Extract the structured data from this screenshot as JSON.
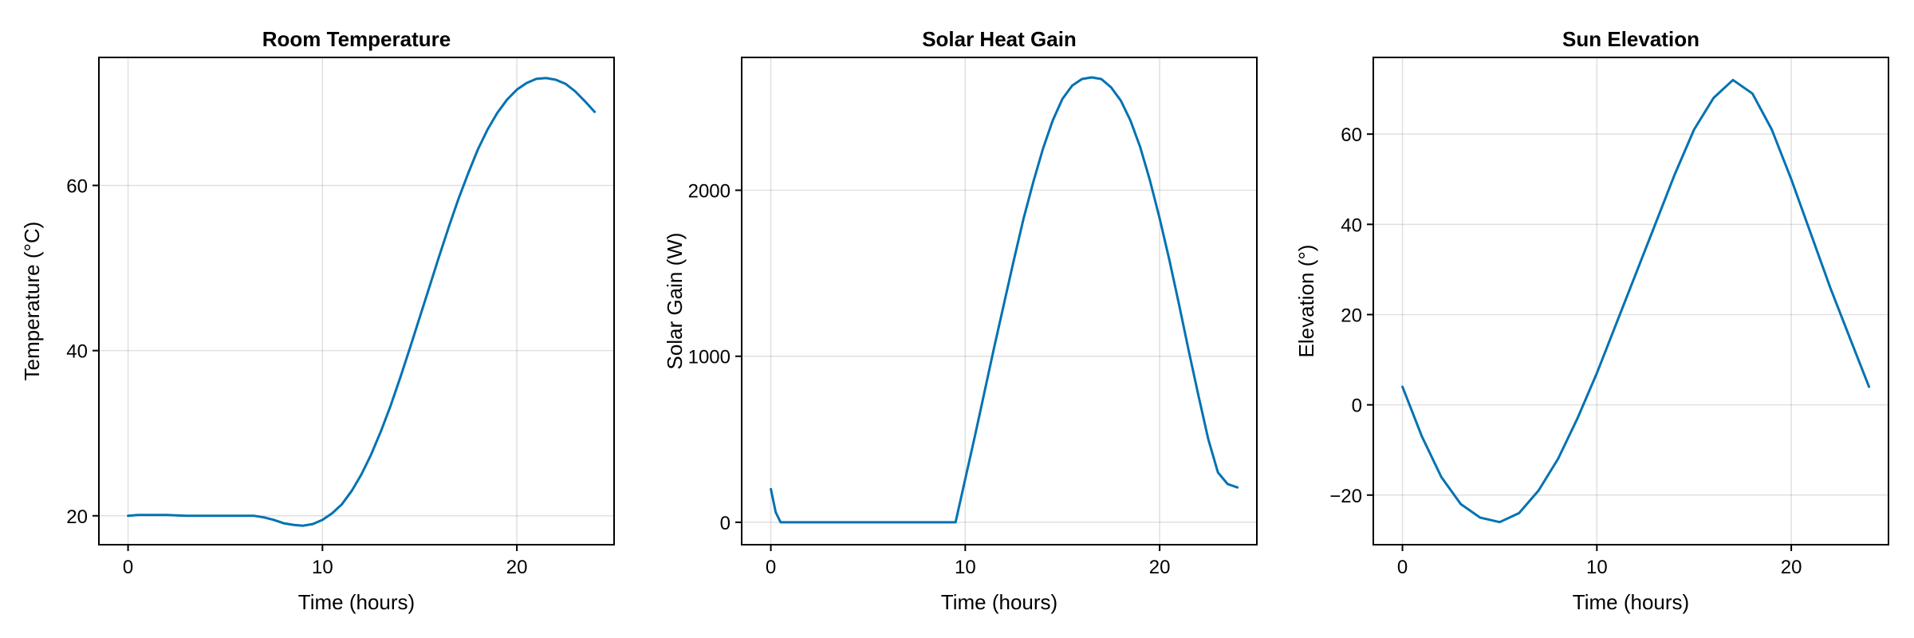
{
  "chart_data": [
    {
      "type": "line",
      "title": "Room Temperature",
      "xlabel": "Time (hours)",
      "ylabel": "Temperature (°C)",
      "xlim": [
        -1.5,
        25
      ],
      "ylim": [
        16.5,
        75.5
      ],
      "xticks": [
        0,
        10,
        20
      ],
      "yticks": [
        20,
        40,
        60
      ],
      "grid": true,
      "color": "#0072b2",
      "x": [
        0,
        0.5,
        1,
        2,
        3,
        4,
        5,
        6,
        6.5,
        7,
        7.5,
        8,
        8.5,
        9,
        9.5,
        10,
        10.5,
        11,
        11.5,
        12,
        12.5,
        13,
        13.5,
        14,
        14.5,
        15,
        15.5,
        16,
        16.5,
        17,
        17.5,
        18,
        18.5,
        19,
        19.5,
        20,
        20.5,
        21,
        21.5,
        22,
        22.5,
        23,
        23.5,
        24
      ],
      "y": [
        20.0,
        20.1,
        20.1,
        20.1,
        20.0,
        20.0,
        20.0,
        20.0,
        20.0,
        19.8,
        19.5,
        19.1,
        18.9,
        18.8,
        19.0,
        19.5,
        20.3,
        21.4,
        23.0,
        25.0,
        27.4,
        30.2,
        33.3,
        36.7,
        40.3,
        44.0,
        47.7,
        51.4,
        55.0,
        58.4,
        61.5,
        64.4,
        66.8,
        68.8,
        70.4,
        71.6,
        72.4,
        72.9,
        73.0,
        72.8,
        72.3,
        71.4,
        70.2,
        68.9
      ]
    },
    {
      "type": "line",
      "title": "Solar Heat Gain",
      "xlabel": "Time (hours)",
      "ylabel": "Solar Gain (W)",
      "xlim": [
        -1.5,
        25
      ],
      "ylim": [
        -135,
        2800
      ],
      "xticks": [
        0,
        10,
        20
      ],
      "yticks": [
        0,
        1000,
        2000
      ],
      "grid": true,
      "color": "#0072b2",
      "x": [
        0,
        0.25,
        0.5,
        1,
        2,
        3,
        4,
        5,
        6,
        7,
        8,
        9,
        9.5,
        10,
        10.5,
        11,
        11.5,
        12,
        12.5,
        13,
        13.5,
        14,
        14.5,
        15,
        15.5,
        16,
        16.5,
        17,
        17.5,
        18,
        18.5,
        19,
        19.5,
        20,
        20.5,
        21,
        21.5,
        22,
        22.5,
        23,
        23.5,
        24
      ],
      "y": [
        200,
        60,
        0,
        0,
        0,
        0,
        0,
        0,
        0,
        0,
        0,
        0,
        0,
        260,
        520,
        790,
        1060,
        1320,
        1580,
        1830,
        2050,
        2250,
        2420,
        2550,
        2630,
        2670,
        2680,
        2670,
        2620,
        2540,
        2420,
        2260,
        2060,
        1830,
        1580,
        1310,
        1030,
        760,
        500,
        300,
        230,
        210
      ]
    },
    {
      "type": "line",
      "title": "Sun Elevation",
      "xlabel": "Time (hours)",
      "ylabel": "Elevation (°)",
      "xlim": [
        -1.5,
        25
      ],
      "ylim": [
        -31,
        77
      ],
      "xticks": [
        0,
        10,
        20
      ],
      "yticks": [
        -20,
        0,
        20,
        40,
        60
      ],
      "grid": true,
      "color": "#0072b2",
      "x": [
        0,
        1,
        2,
        3,
        4,
        5,
        6,
        7,
        8,
        9,
        10,
        11,
        12,
        13,
        14,
        15,
        16,
        17,
        18,
        19,
        20,
        21,
        22,
        23,
        24
      ],
      "y": [
        4,
        -7,
        -16,
        -22,
        -25,
        -26,
        -24,
        -19,
        -12,
        -3,
        7,
        18,
        29,
        40,
        51,
        61,
        68,
        72,
        69,
        61,
        50,
        38,
        26,
        15,
        4
      ]
    }
  ]
}
